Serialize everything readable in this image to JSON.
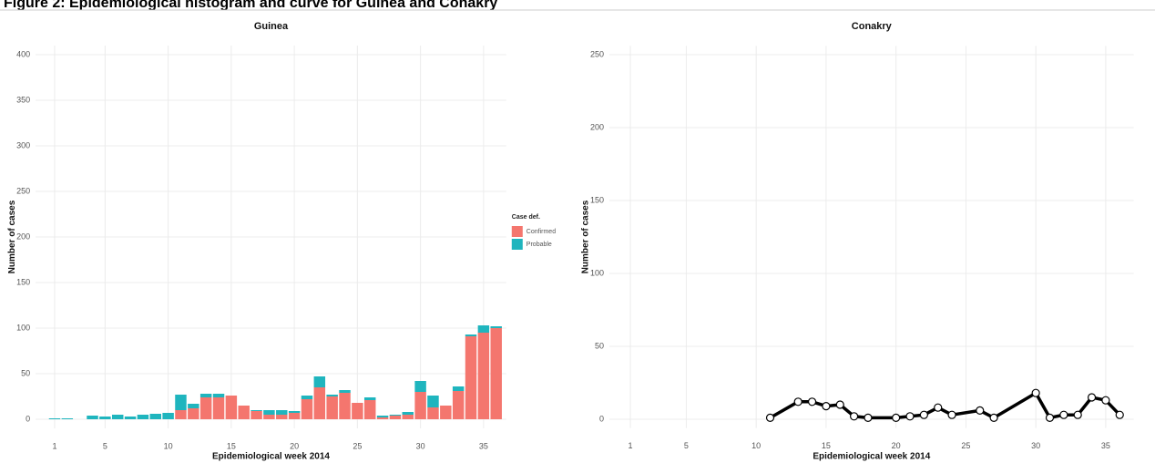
{
  "figure_title": "Figure 2: Epidemiological histogram and curve for Guinea and Conakry",
  "chart_data": [
    {
      "type": "bar",
      "stacked": true,
      "title": "Guinea",
      "x_label": "Epidemiological week 2014",
      "y_label": "Number of cases",
      "x": [
        1,
        2,
        3,
        4,
        5,
        6,
        7,
        8,
        9,
        10,
        11,
        12,
        13,
        14,
        15,
        16,
        17,
        18,
        19,
        20,
        21,
        22,
        23,
        24,
        25,
        26,
        27,
        28,
        29,
        30,
        31,
        32,
        33,
        34,
        35,
        36
      ],
      "series": [
        {
          "name": "Confirmed",
          "color": "#f4766e",
          "values": [
            0,
            0,
            0,
            0,
            0,
            0,
            0,
            0,
            0,
            0,
            10,
            12,
            24,
            24,
            26,
            15,
            9,
            5,
            5,
            7,
            22,
            35,
            25,
            29,
            18,
            21,
            2,
            4,
            5,
            30,
            13,
            15,
            31,
            91,
            95,
            100
          ]
        },
        {
          "name": "Probable",
          "color": "#1fb5be",
          "values": [
            1,
            1,
            0,
            4,
            3,
            5,
            3,
            5,
            6,
            7,
            17,
            5,
            4,
            4,
            0,
            0,
            1,
            5,
            5,
            2,
            4,
            12,
            2,
            3,
            0,
            3,
            2,
            1,
            3,
            12,
            13,
            0,
            5,
            2,
            8,
            2
          ]
        }
      ],
      "xlim": [
        -0.5,
        36.8
      ],
      "xticks": [
        1,
        5,
        10,
        15,
        20,
        25,
        30,
        35
      ],
      "ylim": [
        -10,
        410
      ],
      "yticks": [
        0,
        50,
        100,
        150,
        200,
        250,
        300,
        350,
        400
      ],
      "grid": true,
      "legend_title": "Case def.",
      "legend": "right"
    },
    {
      "type": "line",
      "title": "Conakry",
      "x_label": "Epidemiological week 2014",
      "y_label": "Number of cases",
      "x": [
        11,
        13,
        14,
        15,
        16,
        17,
        18,
        20,
        21,
        22,
        23,
        24,
        26,
        27,
        30,
        31,
        32,
        33,
        34,
        35,
        36
      ],
      "values": [
        1,
        12,
        12,
        9,
        10,
        2,
        1,
        1,
        2,
        3,
        8,
        3,
        6,
        1,
        18,
        1,
        3,
        3,
        15,
        13,
        3
      ],
      "color": "#000000",
      "xlim": [
        -0.5,
        37
      ],
      "xticks": [
        1,
        5,
        10,
        15,
        20,
        25,
        30,
        35
      ],
      "ylim": [
        -6,
        256
      ],
      "yticks": [
        0,
        50,
        100,
        150,
        200,
        250
      ],
      "grid": true
    }
  ]
}
